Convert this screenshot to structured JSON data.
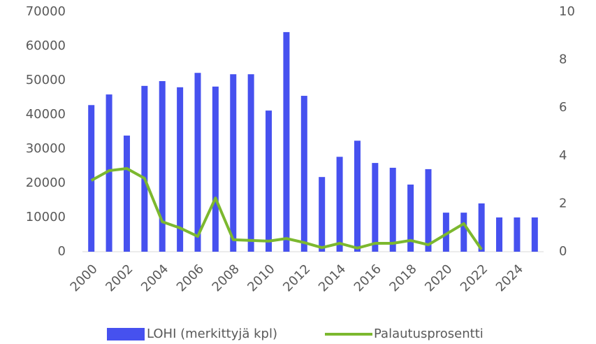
{
  "chart_data": {
    "type": "bar-line",
    "categories": [
      "2000",
      null,
      "2002",
      null,
      "2004",
      null,
      "2006",
      null,
      "2008",
      null,
      "2010",
      null,
      "2012",
      null,
      "2014",
      null,
      "2016",
      null,
      "2018",
      null,
      "2020",
      null,
      "2022",
      null,
      "2024",
      null
    ],
    "series": [
      {
        "name": "LOHI (merkittyjä kpl)",
        "color": "#4651ef",
        "type": "bar",
        "values": [
          42800,
          45900,
          33900,
          48400,
          49800,
          48000,
          52200,
          48200,
          51800,
          51800,
          41200,
          64100,
          45500,
          21800,
          27700,
          32400,
          25900,
          24500,
          19600,
          24100,
          11400,
          11400,
          14100,
          10000,
          10000,
          10000
        ]
      },
      {
        "name": "Palautusprosentti",
        "color": "#7cb82f",
        "type": "line",
        "axis": "y2",
        "values": [
          2.97,
          3.38,
          3.47,
          3.06,
          1.25,
          0.99,
          0.64,
          2.24,
          0.5,
          0.47,
          0.44,
          0.55,
          0.38,
          0.17,
          0.35,
          0.15,
          0.35,
          0.35,
          0.47,
          0.29,
          0.73,
          1.17,
          0.09,
          null,
          null,
          null
        ]
      }
    ],
    "ylim": [
      0,
      70000
    ],
    "yticks": [
      0,
      10000,
      20000,
      30000,
      40000,
      50000,
      60000,
      70000
    ],
    "y2lim": [
      0,
      10
    ],
    "y2ticks": [
      0,
      2,
      4,
      6,
      8,
      10
    ],
    "grid": false,
    "legend": "bottom"
  }
}
